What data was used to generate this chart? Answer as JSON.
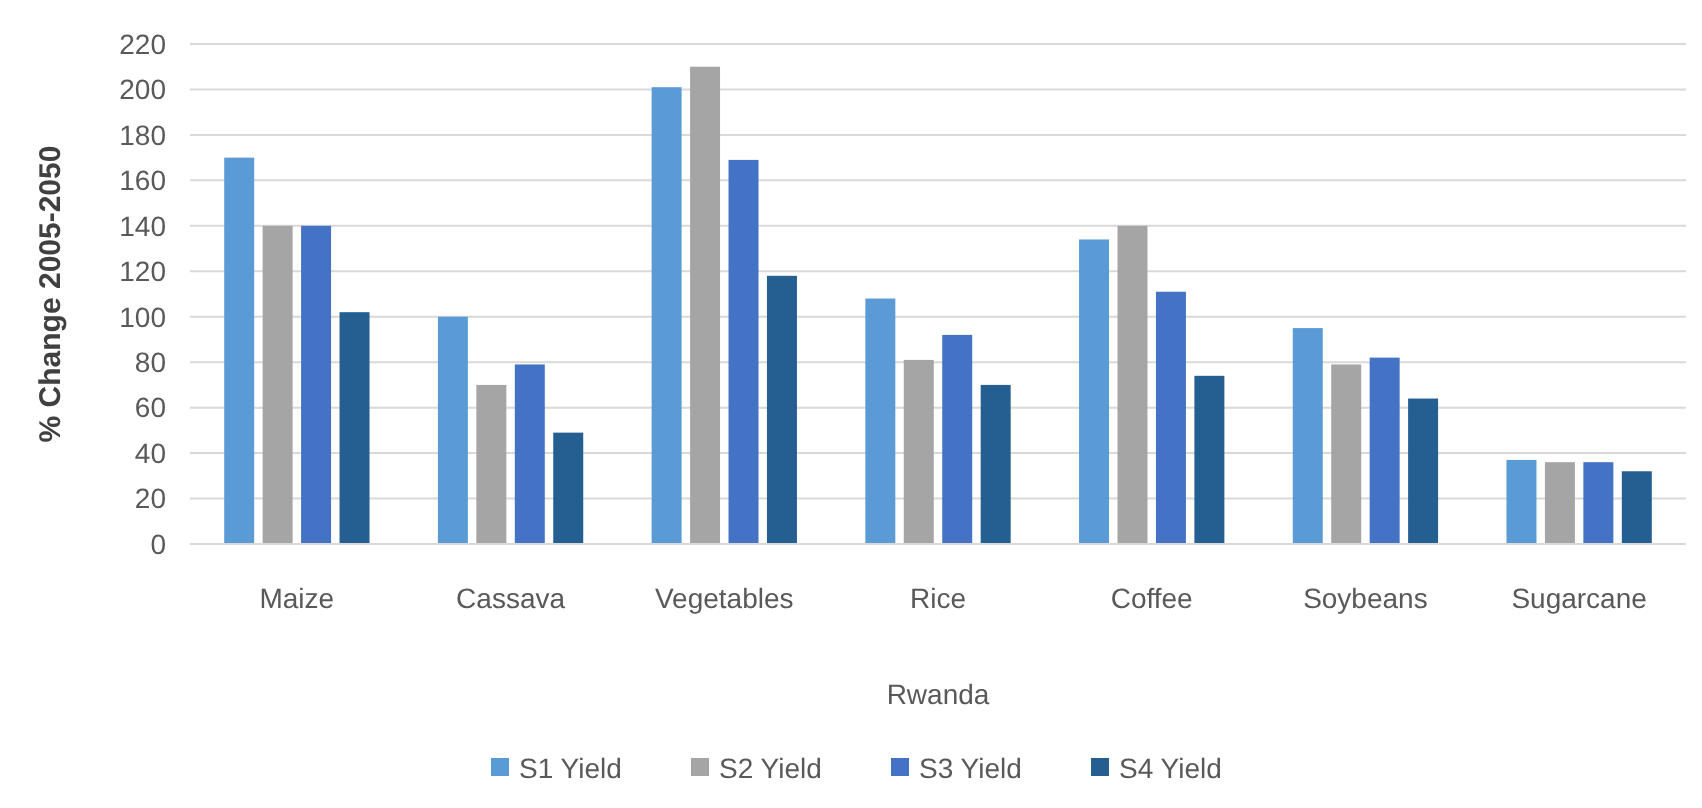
{
  "chart_data": {
    "type": "bar",
    "xlabel": "Rwanda",
    "ylabel": "% Change 2005-2050",
    "categories": [
      "Maize",
      "Cassava",
      "Vegetables",
      "Rice",
      "Coffee",
      "Soybeans",
      "Sugarcane"
    ],
    "series": [
      {
        "name": "S1 Yield",
        "color": "#5b9bd5",
        "values": [
          170,
          100,
          201,
          108,
          134,
          95,
          37
        ]
      },
      {
        "name": "S2 Yield",
        "color": "#a5a5a5",
        "values": [
          140,
          70,
          210,
          81,
          140,
          79,
          36
        ]
      },
      {
        "name": "S3 Yield",
        "color": "#4472c4",
        "values": [
          140,
          79,
          169,
          92,
          111,
          82,
          36
        ]
      },
      {
        "name": "S4 Yield",
        "color": "#255e91",
        "values": [
          102,
          49,
          118,
          70,
          74,
          64,
          32
        ]
      }
    ],
    "ylim": [
      0,
      220
    ],
    "yticks": [
      0,
      20,
      40,
      60,
      80,
      100,
      120,
      140,
      160,
      180,
      200,
      220
    ],
    "grid": "y",
    "legend": "bottom"
  }
}
